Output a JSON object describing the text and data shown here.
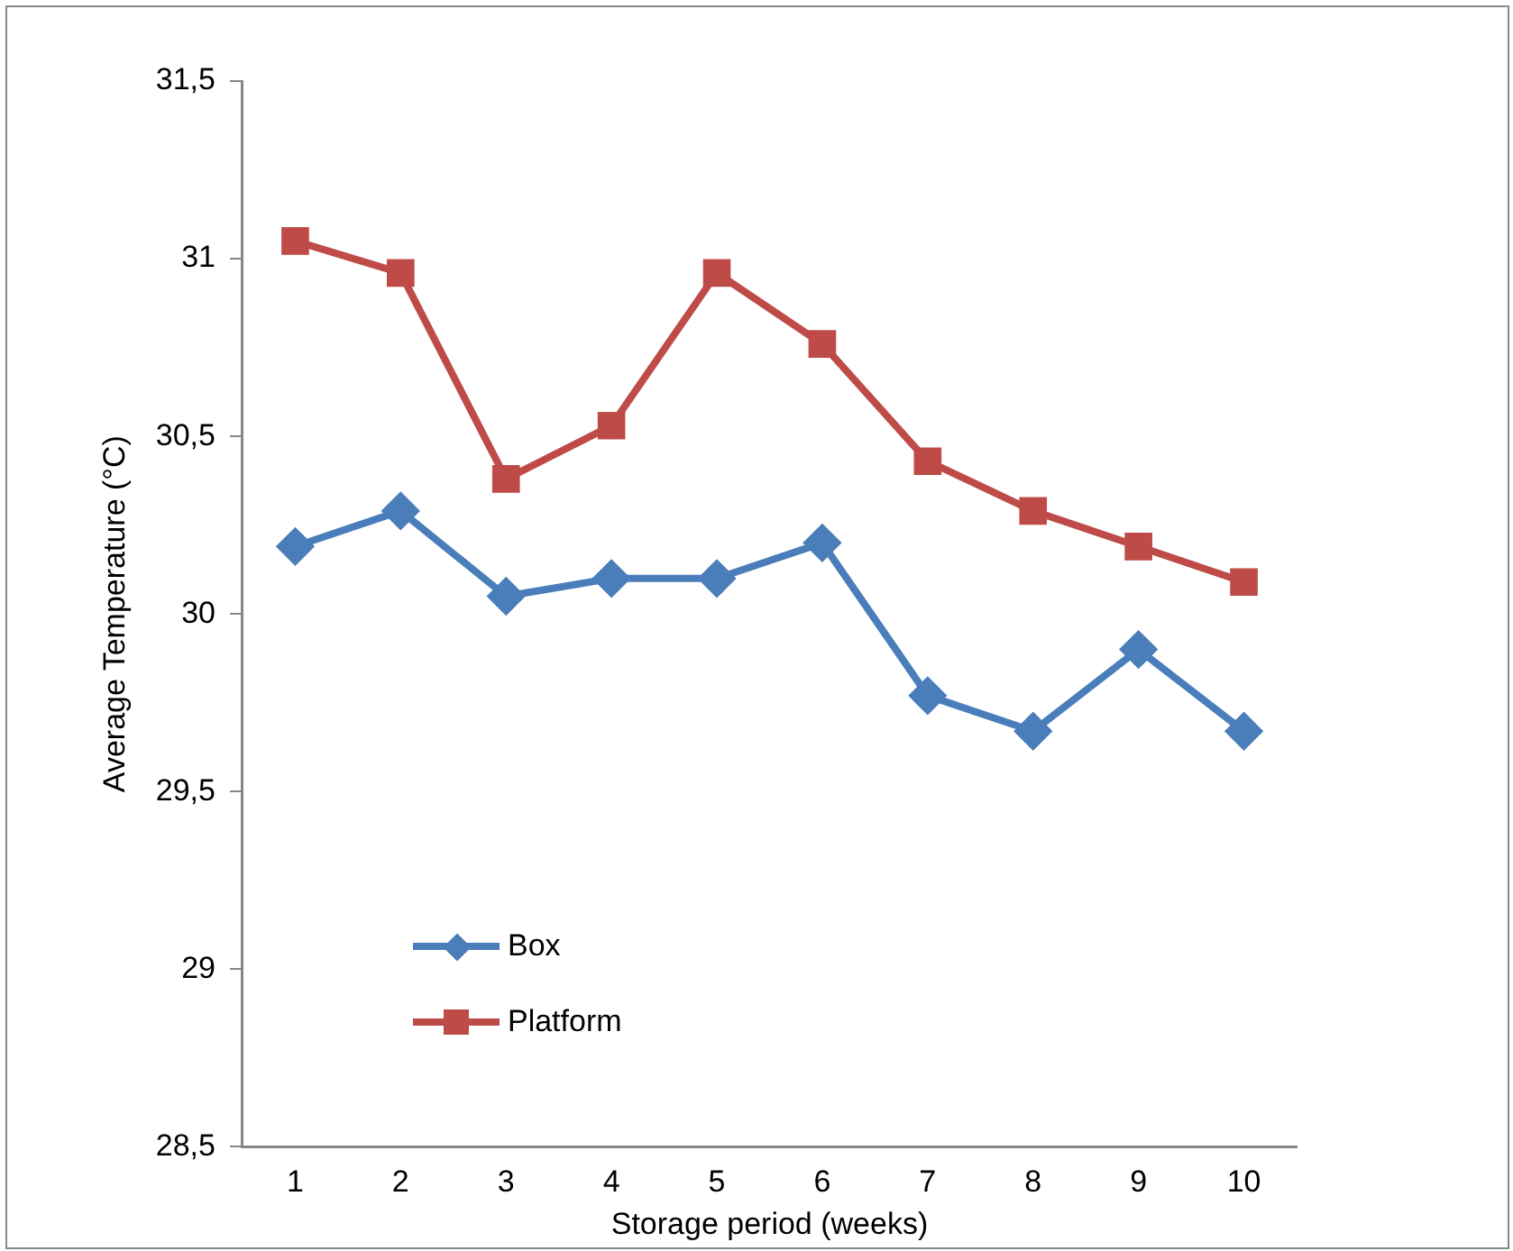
{
  "chart_data": {
    "type": "line",
    "xlabel": "Storage period (weeks)",
    "ylabel": "Average Temperature (°C)",
    "categories": [
      "1",
      "2",
      "3",
      "4",
      "5",
      "6",
      "7",
      "8",
      "9",
      "10"
    ],
    "series": [
      {
        "name": "Box",
        "color": "#4a7ebb",
        "marker": "diamond",
        "values": [
          30.19,
          30.29,
          30.05,
          30.1,
          30.1,
          30.2,
          29.77,
          29.67,
          29.9,
          29.67
        ]
      },
      {
        "name": "Platform",
        "color": "#be4b48",
        "marker": "square",
        "values": [
          31.05,
          30.96,
          30.38,
          30.53,
          30.96,
          30.76,
          30.43,
          30.29,
          30.19,
          30.09
        ]
      }
    ],
    "ylim": [
      28.5,
      31.5
    ],
    "yticks": [
      {
        "value": 28.5,
        "label": "28,5"
      },
      29,
      {
        "value": 29.5,
        "label": "29,5"
      },
      30,
      {
        "value": 30.5,
        "label": "30,5"
      },
      31,
      {
        "value": 31.5,
        "label": "31,5"
      }
    ],
    "grid": false,
    "legend": "bottom left",
    "line_style": "solid"
  }
}
